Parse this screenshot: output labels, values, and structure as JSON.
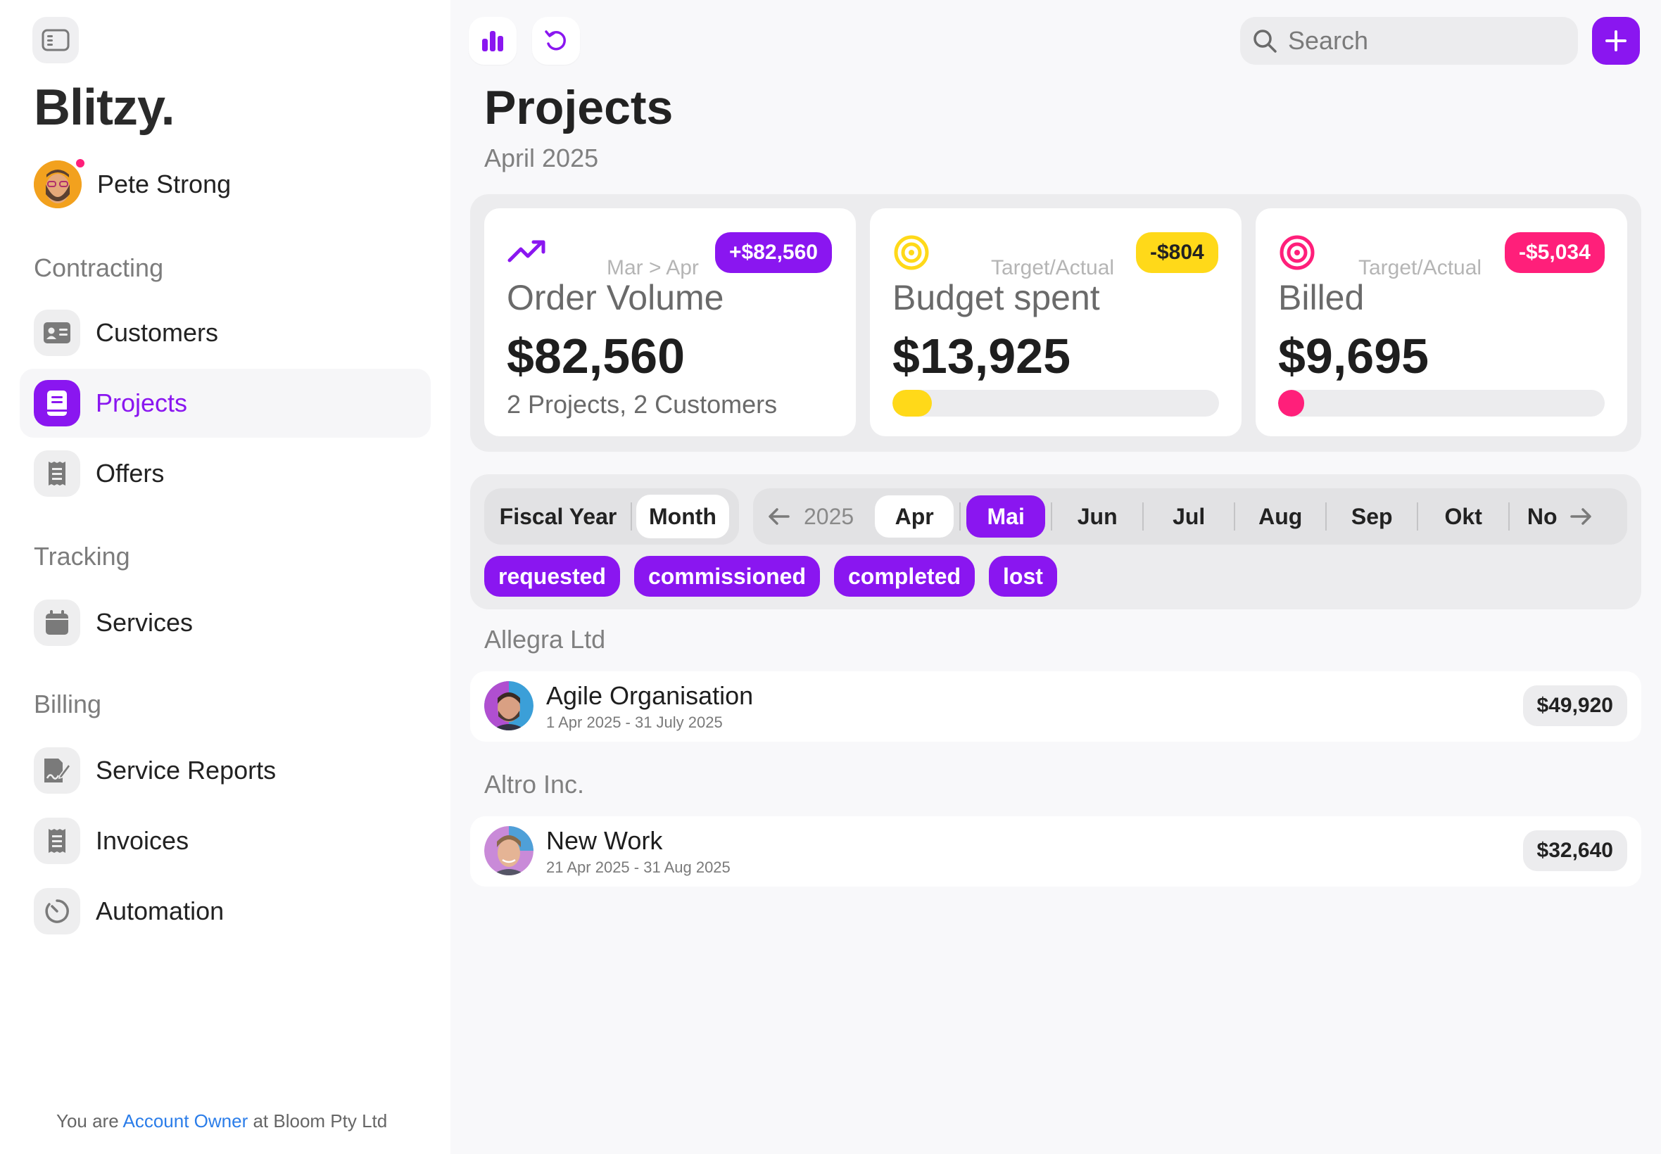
{
  "app": {
    "brand": "Blitzy.",
    "user_name": "Pete Strong"
  },
  "sidebar": {
    "sections": [
      {
        "label": "Contracting"
      },
      {
        "label": "Tracking"
      },
      {
        "label": "Billing"
      }
    ],
    "items": [
      {
        "label": "Customers"
      },
      {
        "label": "Projects"
      },
      {
        "label": "Offers"
      },
      {
        "label": "Services"
      },
      {
        "label": "Service Reports"
      },
      {
        "label": "Invoices"
      },
      {
        "label": "Automation"
      }
    ],
    "active_item": "Projects",
    "footer": {
      "prefix": "You are",
      "role": "Account Owner",
      "suffix": "at Bloom Pty Ltd"
    }
  },
  "header": {
    "search_placeholder": "Search",
    "title": "Projects",
    "subtitle": "April 2025"
  },
  "kpis": [
    {
      "icon": "trending-up-icon",
      "compare": "Mar > Apr",
      "badge": "+$82,560",
      "badge_color": "#8a16f0",
      "title": "Order Volume",
      "value": "$82,560",
      "sub": "2 Projects, 2 Customers"
    },
    {
      "icon": "target-icon",
      "compare": "Target/Actual",
      "badge": "-$804",
      "badge_color": "#ffd919",
      "title": "Budget spent",
      "value": "$13,925",
      "progress": 0.12,
      "bar_color": "#ffd919"
    },
    {
      "icon": "target-icon",
      "compare": "Target/Actual",
      "badge": "-$5,034",
      "badge_color": "#ff1f7a",
      "title": "Billed",
      "value": "$9,695",
      "progress": 0.08,
      "bar_color": "#ff1f7a"
    }
  ],
  "filters": {
    "period_modes": [
      "Fiscal Year",
      "Month"
    ],
    "active_mode": "Month",
    "year": "2025",
    "months": [
      "Apr",
      "Mai",
      "Jun",
      "Jul",
      "Aug",
      "Sep",
      "Okt",
      "No"
    ],
    "selected_month": "Mai",
    "statuses": [
      "requested",
      "commissioned",
      "completed",
      "lost"
    ]
  },
  "groups": [
    {
      "customer": "Allegra Ltd",
      "projects": [
        {
          "name": "Agile Organisation",
          "dates": "1 Apr 2025 - 31 July 2025",
          "amount": "$49,920"
        }
      ]
    },
    {
      "customer": "Altro Inc.",
      "projects": [
        {
          "name": "New Work",
          "dates": "21 Apr 2025 - 31 Aug 2025",
          "amount": "$32,640"
        }
      ]
    }
  ],
  "colors": {
    "accent": "#8a16f0",
    "yellow": "#ffd919",
    "pink": "#ff1f7a",
    "link": "#2b7de9"
  }
}
